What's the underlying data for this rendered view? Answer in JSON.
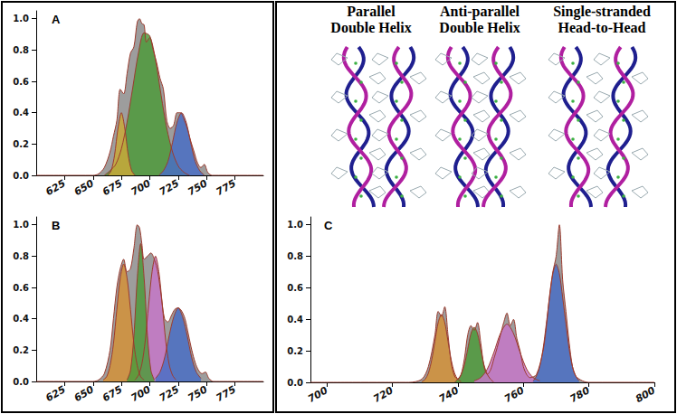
{
  "headings": [
    [
      "Parallel",
      "Double Helix"
    ],
    [
      "Anti-parallel",
      "Double Helix"
    ],
    [
      "Single-stranded",
      "Head-to-Head"
    ]
  ],
  "chart_data": [
    {
      "type": "area",
      "title": "A",
      "grid": false,
      "xlim": [
        600,
        800
      ],
      "xticks": [
        625,
        650,
        675,
        700,
        725,
        750,
        775
      ],
      "ylim": [
        0,
        1.05
      ],
      "yticks": [
        {
          "value": 0,
          "label": "0.0"
        },
        {
          "value": 0.2,
          "label": "0.2"
        },
        {
          "value": 0.4,
          "label": "0.4"
        },
        {
          "value": 0.6,
          "label": "0.6"
        },
        {
          "value": 0.8,
          "label": "0.8"
        },
        {
          "value": 1.0,
          "label": "1.0"
        }
      ],
      "series": [
        {
          "type": "area",
          "color": "#8c8c8c",
          "x": [
            600,
            650,
            655,
            660,
            665,
            668,
            671,
            674,
            677,
            680,
            683,
            686,
            689,
            691,
            693,
            695,
            697,
            700,
            703,
            706,
            709,
            712,
            715,
            718,
            721,
            724,
            727,
            730,
            733,
            736,
            739,
            742,
            745,
            748,
            751,
            755,
            800
          ],
          "values": [
            0,
            0,
            0.01,
            0.05,
            0.15,
            0.25,
            0.35,
            0.55,
            0.52,
            0.65,
            0.78,
            0.82,
            0.98,
            1.0,
            0.97,
            0.96,
            0.85,
            0.88,
            0.8,
            0.72,
            0.62,
            0.55,
            0.35,
            0.3,
            0.32,
            0.4,
            0.4,
            0.36,
            0.3,
            0.22,
            0.15,
            0.08,
            0.05,
            0.07,
            0.02,
            0,
            0
          ]
        },
        {
          "type": "area",
          "color": "#4f9a3c",
          "x": [
            660,
            665,
            670,
            675,
            680,
            685,
            690,
            695,
            700,
            705,
            710,
            715,
            720,
            725,
            730,
            735
          ],
          "values": [
            0,
            0.03,
            0.07,
            0.17,
            0.34,
            0.56,
            0.78,
            0.91,
            0.89,
            0.74,
            0.51,
            0.3,
            0.15,
            0.06,
            0.02,
            0
          ]
        },
        {
          "type": "area",
          "color": "#c9a93a",
          "x": [
            663,
            666,
            669,
            672,
            675,
            678,
            681,
            684,
            687
          ],
          "values": [
            0,
            0.03,
            0.13,
            0.3,
            0.4,
            0.3,
            0.13,
            0.03,
            0
          ]
        },
        {
          "type": "area",
          "color": "#4a6fc4",
          "x": [
            708,
            712,
            716,
            720,
            724,
            728,
            732,
            736,
            740,
            744,
            748
          ],
          "values": [
            0,
            0.03,
            0.09,
            0.21,
            0.34,
            0.4,
            0.34,
            0.21,
            0.09,
            0.03,
            0
          ]
        }
      ]
    },
    {
      "type": "area",
      "title": "B",
      "grid": false,
      "xlim": [
        600,
        800
      ],
      "xticks": [
        625,
        650,
        675,
        700,
        725,
        750,
        775
      ],
      "ylim": [
        0,
        1.05
      ],
      "yticks": [
        {
          "value": 0,
          "label": "0.0"
        },
        {
          "value": 0.2,
          "label": "0.2"
        },
        {
          "value": 0.4,
          "label": "0.4"
        },
        {
          "value": 0.6,
          "label": "0.6"
        },
        {
          "value": 0.8,
          "label": "0.8"
        },
        {
          "value": 1.0,
          "label": "1.0"
        }
      ],
      "series": [
        {
          "type": "area",
          "color": "#8c8c8c",
          "x": [
            600,
            650,
            655,
            660,
            665,
            668,
            671,
            674,
            677,
            680,
            683,
            686,
            689,
            691,
            693,
            695,
            698,
            701,
            704,
            707,
            710,
            713,
            716,
            719,
            722,
            725,
            728,
            731,
            734,
            737,
            740,
            743,
            746,
            749,
            752,
            756,
            800
          ],
          "values": [
            0,
            0,
            0.01,
            0.05,
            0.2,
            0.4,
            0.6,
            0.72,
            0.78,
            0.7,
            0.72,
            0.85,
            1.0,
            0.98,
            0.88,
            0.78,
            0.8,
            0.82,
            0.78,
            0.7,
            0.55,
            0.4,
            0.38,
            0.42,
            0.46,
            0.47,
            0.45,
            0.4,
            0.3,
            0.2,
            0.12,
            0.07,
            0.05,
            0.06,
            0.02,
            0,
            0
          ]
        },
        {
          "type": "area",
          "color": "#d4923a",
          "x": [
            659,
            662,
            665,
            668,
            671,
            674,
            677,
            680,
            683,
            686,
            689,
            692,
            695
          ],
          "values": [
            0.01,
            0.03,
            0.1,
            0.24,
            0.46,
            0.66,
            0.75,
            0.66,
            0.46,
            0.24,
            0.1,
            0.03,
            0.01
          ]
        },
        {
          "type": "area",
          "color": "#c678c8",
          "x": [
            687,
            690,
            693,
            696,
            699,
            702,
            705,
            708,
            711,
            714,
            717,
            720,
            723
          ],
          "values": [
            0.01,
            0.04,
            0.11,
            0.26,
            0.49,
            0.7,
            0.8,
            0.7,
            0.49,
            0.26,
            0.11,
            0.04,
            0.01
          ]
        },
        {
          "type": "area",
          "color": "#4f9a3c",
          "x": [
            680,
            683,
            686,
            689,
            692,
            695,
            698,
            701,
            704
          ],
          "values": [
            0.01,
            0.07,
            0.29,
            0.66,
            0.88,
            0.66,
            0.29,
            0.07,
            0.01
          ]
        },
        {
          "type": "area",
          "color": "#4a6fc4",
          "x": [
            705,
            709,
            713,
            717,
            721,
            725,
            729,
            733,
            737,
            741,
            745
          ],
          "values": [
            0.02,
            0.06,
            0.15,
            0.29,
            0.41,
            0.47,
            0.41,
            0.29,
            0.15,
            0.06,
            0.02
          ]
        }
      ]
    },
    {
      "type": "area",
      "title": "C",
      "grid": false,
      "xlim": [
        695,
        800
      ],
      "xticks": [
        700,
        720,
        740,
        760,
        780,
        800
      ],
      "ylim": [
        0,
        1.05
      ],
      "yticks": [
        {
          "value": 0,
          "label": "0.0"
        },
        {
          "value": 0.2,
          "label": "0.2"
        },
        {
          "value": 0.4,
          "label": "0.4"
        },
        {
          "value": 0.6,
          "label": "0.6"
        },
        {
          "value": 0.8,
          "label": "0.8"
        },
        {
          "value": 1.0,
          "label": "1.0"
        }
      ],
      "series": [
        {
          "type": "area",
          "color": "#8c8c8c",
          "x": [
            695,
            725,
            729,
            731,
            733,
            734,
            735,
            736,
            737,
            738,
            739,
            740,
            741,
            742,
            743,
            744,
            745,
            746,
            747,
            748,
            749,
            750,
            751,
            752,
            753,
            754,
            755,
            756,
            757,
            758,
            759,
            760,
            761,
            762,
            764,
            766,
            767,
            768,
            769,
            770,
            771,
            772,
            773,
            774,
            775,
            776,
            778,
            780,
            800
          ],
          "values": [
            0,
            0,
            0.02,
            0.1,
            0.3,
            0.45,
            0.42,
            0.48,
            0.3,
            0.12,
            0.04,
            0.02,
            0.05,
            0.15,
            0.3,
            0.36,
            0.33,
            0.38,
            0.25,
            0.1,
            0.05,
            0.08,
            0.15,
            0.22,
            0.3,
            0.38,
            0.44,
            0.36,
            0.4,
            0.28,
            0.2,
            0.1,
            0.05,
            0.03,
            0.05,
            0.2,
            0.35,
            0.55,
            0.7,
            0.8,
            1.0,
            0.65,
            0.45,
            0.25,
            0.1,
            0.04,
            0.01,
            0,
            0
          ]
        },
        {
          "type": "area",
          "color": "#d4923a",
          "x": [
            729,
            730,
            731,
            732,
            733,
            734,
            735,
            736,
            737,
            738,
            739,
            740,
            741
          ],
          "values": [
            0.005,
            0.019,
            0.058,
            0.14,
            0.26,
            0.38,
            0.43,
            0.38,
            0.26,
            0.14,
            0.058,
            0.019,
            0.005
          ]
        },
        {
          "type": "area",
          "color": "#4f9a3c",
          "x": [
            739,
            740,
            741,
            742,
            743,
            744,
            745,
            746,
            747,
            748,
            749,
            750,
            751
          ],
          "values": [
            0,
            0.02,
            0.05,
            0.11,
            0.21,
            0.31,
            0.35,
            0.31,
            0.21,
            0.11,
            0.05,
            0.02,
            0
          ]
        },
        {
          "type": "area",
          "color": "#c678c8",
          "x": [
            745,
            747,
            749,
            751,
            753,
            755,
            757,
            759,
            761,
            763,
            765
          ],
          "values": [
            0.01,
            0.03,
            0.085,
            0.19,
            0.31,
            0.37,
            0.31,
            0.19,
            0.085,
            0.03,
            0.01
          ]
        },
        {
          "type": "area",
          "color": "#4a6fc4",
          "x": [
            763,
            764,
            765,
            766,
            767,
            768,
            769,
            770,
            771,
            772,
            773,
            774,
            775,
            776,
            777
          ],
          "values": [
            0.01,
            0.04,
            0.1,
            0.21,
            0.37,
            0.54,
            0.69,
            0.75,
            0.69,
            0.54,
            0.37,
            0.21,
            0.1,
            0.04,
            0.01
          ]
        }
      ]
    }
  ]
}
